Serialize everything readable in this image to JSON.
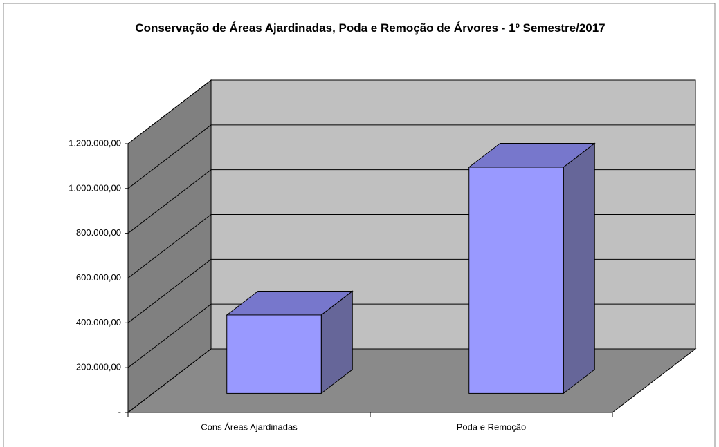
{
  "chart_data": {
    "type": "bar3d",
    "title": "Conservação de Áreas Ajardinadas, Poda e Remoção de Árvores - 1º Semestre/2017",
    "categories": [
      "Cons Áreas Ajardinadas",
      "Poda e Remoção"
    ],
    "values": [
      350000,
      1010000
    ],
    "color": "#9999ff",
    "ylim": [
      0,
      1200000
    ],
    "yticks": [
      {
        "value": 0,
        "label": "-"
      },
      {
        "value": 200000,
        "label": "200.000,00"
      },
      {
        "value": 400000,
        "label": "400.000,00"
      },
      {
        "value": 600000,
        "label": "600.000,00"
      },
      {
        "value": 800000,
        "label": "800.000,00"
      },
      {
        "value": 1000000,
        "label": "1.000.000,00"
      },
      {
        "value": 1200000,
        "label": "1.200.000,00"
      }
    ],
    "grid": true
  }
}
